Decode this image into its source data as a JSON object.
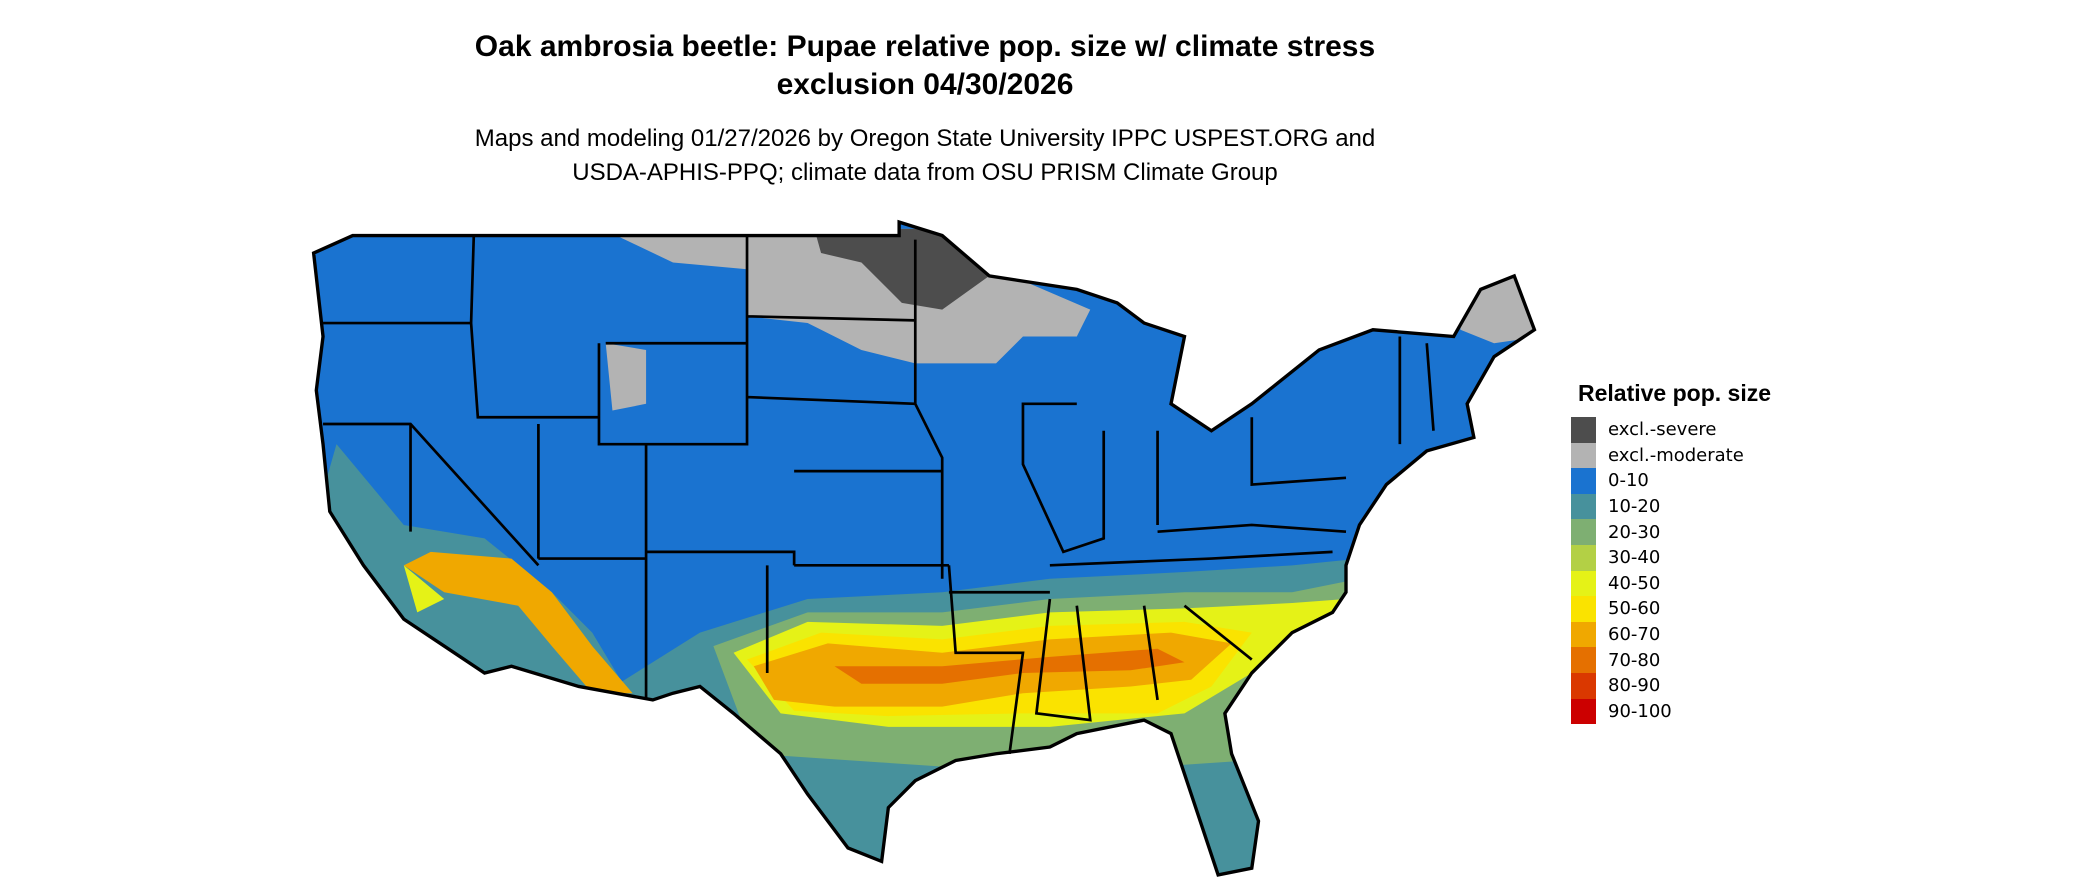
{
  "title": {
    "line1": "Oak ambrosia beetle: Pupae relative pop. size w/ climate stress",
    "line2": "exclusion 04/30/2026"
  },
  "subtitle": {
    "line1": "Maps and modeling 01/27/2026 by Oregon State University IPPC USPEST.ORG and",
    "line2": "USDA-APHIS-PPQ; climate data from OSU PRISM Climate Group"
  },
  "legend": {
    "title": "Relative pop. size",
    "items": [
      {
        "label": "excl.-severe",
        "color": "#4d4d4d"
      },
      {
        "label": "excl.-moderate",
        "color": "#b3b3b3"
      },
      {
        "label": "0-10",
        "color": "#1a73d0"
      },
      {
        "label": "10-20",
        "color": "#47919c"
      },
      {
        "label": "20-30",
        "color": "#7eaf72"
      },
      {
        "label": "30-40",
        "color": "#b3d045"
      },
      {
        "label": "40-50",
        "color": "#e5f217"
      },
      {
        "label": "50-60",
        "color": "#fae300"
      },
      {
        "label": "60-70",
        "color": "#f0a800"
      },
      {
        "label": "70-80",
        "color": "#e57000"
      },
      {
        "label": "80-90",
        "color": "#da3800"
      },
      {
        "label": "90-100",
        "color": "#cc0000"
      }
    ]
  }
}
